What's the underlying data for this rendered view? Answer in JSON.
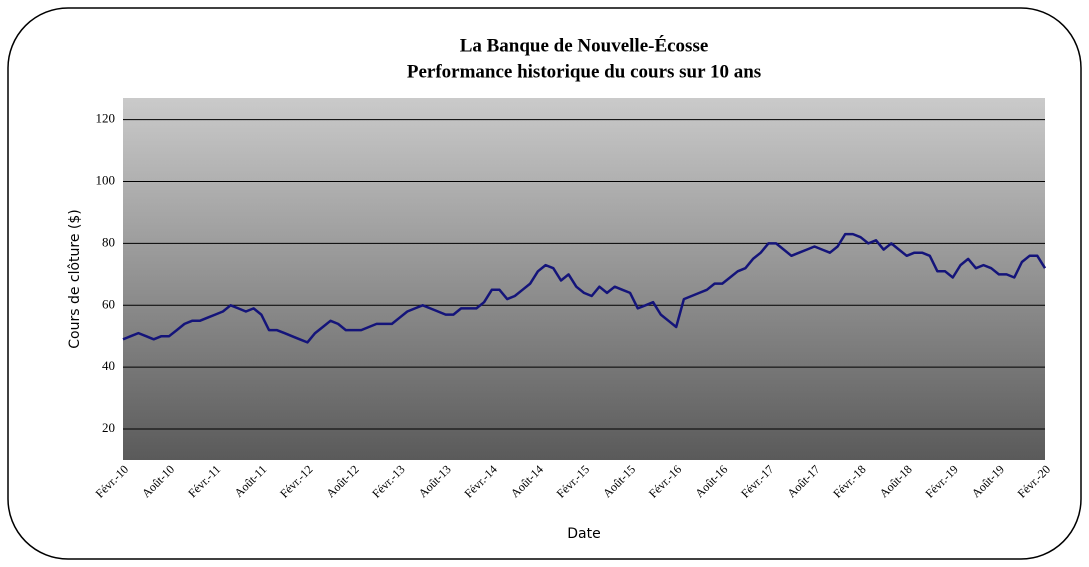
{
  "chart_data": {
    "type": "line",
    "title": "La Banque de Nouvelle-Écosse",
    "subtitle": "Performance historique du cours sur 10 ans",
    "xlabel": "Date",
    "ylabel": "Cours de clôture ($)",
    "color": "#14147a",
    "grid": true,
    "ylim": [
      10,
      127
    ],
    "yticks": [
      20,
      40,
      60,
      80,
      100,
      120
    ],
    "categories": [
      "Févr.-10",
      null,
      null,
      null,
      null,
      null,
      "Août-10",
      null,
      null,
      null,
      null,
      null,
      "Févr.-11",
      null,
      null,
      null,
      null,
      null,
      "Août-11",
      null,
      null,
      null,
      null,
      null,
      "Févr.-12",
      null,
      null,
      null,
      null,
      null,
      "Août-12",
      null,
      null,
      null,
      null,
      null,
      "Févr.-13",
      null,
      null,
      null,
      null,
      null,
      "Août-13",
      null,
      null,
      null,
      null,
      null,
      "Févr.-14",
      null,
      null,
      null,
      null,
      null,
      "Août-14",
      null,
      null,
      null,
      null,
      null,
      "Févr.-15",
      null,
      null,
      null,
      null,
      null,
      "Août-15",
      null,
      null,
      null,
      null,
      null,
      "Févr.-16",
      null,
      null,
      null,
      null,
      null,
      "Août-16",
      null,
      null,
      null,
      null,
      null,
      "Févr.-17",
      null,
      null,
      null,
      null,
      null,
      "Août-17",
      null,
      null,
      null,
      null,
      null,
      "Févr.-18",
      null,
      null,
      null,
      null,
      null,
      "Août-18",
      null,
      null,
      null,
      null,
      null,
      "Févr.-19",
      null,
      null,
      null,
      null,
      null,
      "Août-19",
      null,
      null,
      null,
      null,
      null,
      "Févr.-20"
    ],
    "values": [
      49,
      50,
      51,
      50,
      49,
      50,
      50,
      52,
      54,
      55,
      55,
      56,
      57,
      58,
      60,
      59,
      58,
      59,
      57,
      52,
      52,
      51,
      50,
      49,
      48,
      51,
      53,
      55,
      54,
      52,
      52,
      52,
      53,
      54,
      54,
      54,
      56,
      58,
      59,
      60,
      59,
      58,
      57,
      57,
      59,
      59,
      59,
      61,
      65,
      65,
      62,
      63,
      65,
      67,
      71,
      73,
      72,
      68,
      70,
      66,
      64,
      63,
      66,
      64,
      66,
      65,
      64,
      59,
      60,
      61,
      57,
      55,
      53,
      62,
      63,
      64,
      65,
      67,
      67,
      69,
      71,
      72,
      75,
      77,
      80,
      80,
      78,
      76,
      77,
      78,
      79,
      78,
      77,
      79,
      83,
      83,
      82,
      80,
      81,
      78,
      80,
      78,
      76,
      77,
      77,
      76,
      71,
      71,
      69,
      73,
      75,
      72,
      73,
      72,
      70,
      70,
      69,
      74,
      76,
      76,
      72
    ]
  }
}
